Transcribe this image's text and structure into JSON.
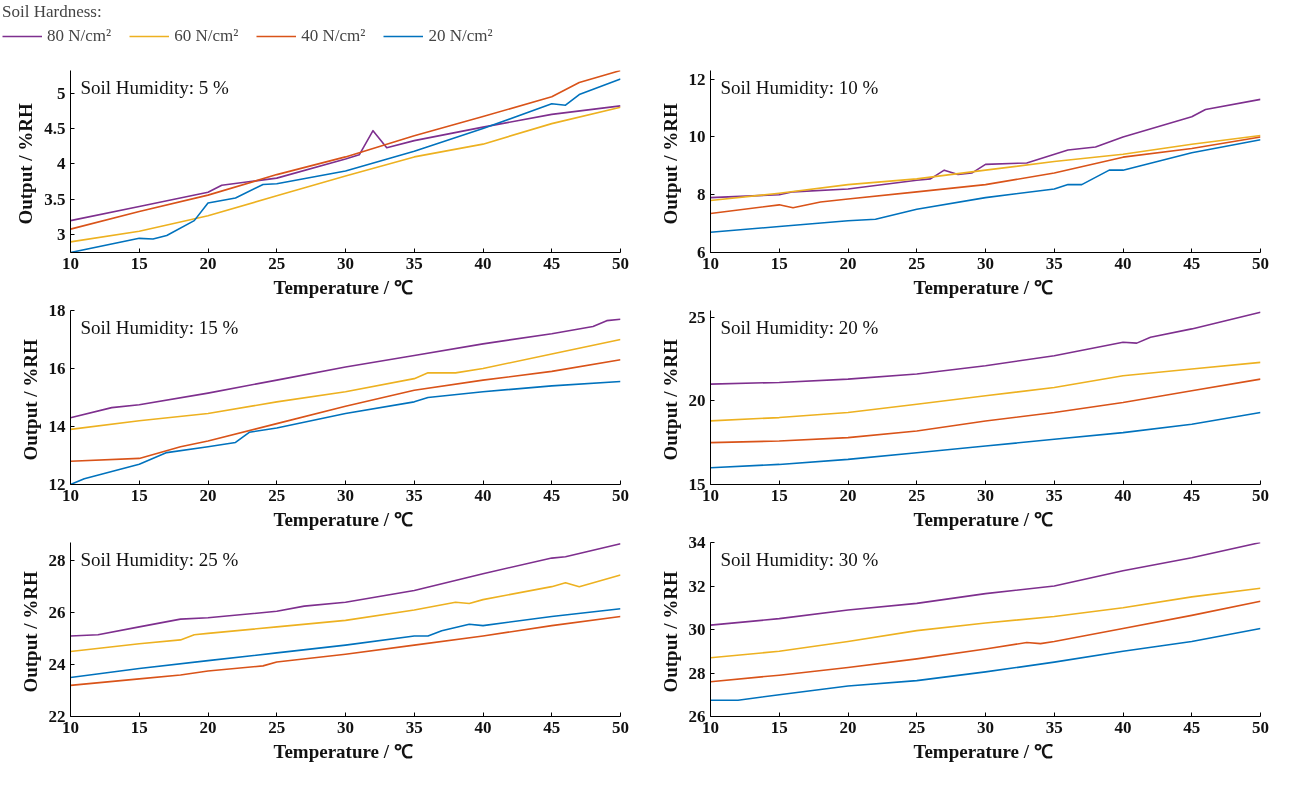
{
  "chart_data": [
    {
      "type": "line",
      "title": "Soil Humidity:  5 %",
      "xlabel": "Temperature  / ℃",
      "ylabel": "Output  / %RH",
      "legend_title": "Soil Hardness:",
      "legend": "top",
      "xlim": [
        10,
        50
      ],
      "xticks": [
        10,
        15,
        20,
        25,
        30,
        35,
        40,
        45,
        50
      ],
      "ylim": [
        2.75,
        5.32
      ],
      "yticks": [
        3,
        3.5,
        4,
        4.5,
        5
      ],
      "grid": false,
      "series": [
        {
          "name": "80 N/cm²",
          "color": "#7e2f8e",
          "x": [
            10,
            15,
            20,
            21,
            25,
            30,
            31,
            32,
            33,
            35,
            40,
            45,
            50
          ],
          "values": [
            3.2,
            3.4,
            3.6,
            3.7,
            3.8,
            4.07,
            4.13,
            4.47,
            4.23,
            4.33,
            4.52,
            4.7,
            4.82
          ]
        },
        {
          "name": "60 N/cm²",
          "color": "#edb120",
          "x": [
            10,
            15,
            20,
            25,
            30,
            35,
            40,
            45,
            50
          ],
          "values": [
            2.9,
            3.05,
            3.27,
            3.55,
            3.83,
            4.1,
            4.28,
            4.57,
            4.8
          ]
        },
        {
          "name": "40 N/cm²",
          "color": "#d95319",
          "x": [
            10,
            15,
            20,
            25,
            30,
            35,
            40,
            45,
            47,
            50
          ],
          "values": [
            3.08,
            3.33,
            3.56,
            3.85,
            4.1,
            4.4,
            4.67,
            4.95,
            5.15,
            5.32
          ]
        },
        {
          "name": "20 N/cm²",
          "color": "#0072bd",
          "x": [
            10,
            15,
            16,
            17,
            19,
            20,
            22,
            24,
            25,
            30,
            35,
            40,
            45,
            46,
            47,
            50
          ],
          "values": [
            2.75,
            2.95,
            2.94,
            2.99,
            3.2,
            3.45,
            3.52,
            3.71,
            3.72,
            3.9,
            4.18,
            4.5,
            4.85,
            4.83,
            4.98,
            5.2
          ]
        }
      ]
    },
    {
      "type": "line",
      "title": "Soil Humidity:  10 %",
      "xlabel": "Temperature  / ℃",
      "ylabel": "Output  / %RH",
      "xlim": [
        10,
        50
      ],
      "xticks": [
        10,
        15,
        20,
        25,
        30,
        35,
        40,
        45,
        50
      ],
      "ylim": [
        6,
        12.3
      ],
      "yticks": [
        6,
        8,
        10,
        12
      ],
      "grid": false,
      "series": [
        {
          "color": "#7e2f8e",
          "x": [
            10,
            15,
            16,
            20,
            25,
            26,
            27,
            28,
            29,
            30,
            33,
            36,
            38,
            40,
            45,
            46,
            50
          ],
          "values": [
            7.9,
            8.0,
            8.1,
            8.2,
            8.5,
            8.55,
            8.85,
            8.7,
            8.75,
            9.05,
            9.1,
            9.55,
            9.65,
            10.0,
            10.7,
            10.95,
            11.3
          ]
        },
        {
          "color": "#edb120",
          "x": [
            10,
            15,
            20,
            25,
            30,
            35,
            40,
            45,
            50
          ],
          "values": [
            7.8,
            8.05,
            8.35,
            8.55,
            8.85,
            9.15,
            9.4,
            9.75,
            10.05
          ]
        },
        {
          "color": "#d95319",
          "x": [
            10,
            15,
            16,
            18,
            20,
            25,
            30,
            35,
            40,
            45,
            50
          ],
          "values": [
            7.35,
            7.65,
            7.55,
            7.75,
            7.85,
            8.1,
            8.35,
            8.75,
            9.3,
            9.6,
            10.0
          ]
        },
        {
          "color": "#0072bd",
          "x": [
            10,
            15,
            20,
            22,
            25,
            30,
            35,
            36,
            37,
            39,
            40,
            45,
            50
          ],
          "values": [
            6.7,
            6.9,
            7.1,
            7.15,
            7.5,
            7.9,
            8.2,
            8.35,
            8.35,
            8.85,
            8.85,
            9.45,
            9.9
          ]
        }
      ]
    },
    {
      "type": "line",
      "title": "Soil Humidity:  15 %",
      "xlabel": "Temperature  / ℃",
      "ylabel": "Output  / %RH",
      "xlim": [
        10,
        50
      ],
      "xticks": [
        10,
        15,
        20,
        25,
        30,
        35,
        40,
        45,
        50
      ],
      "ylim": [
        12,
        18
      ],
      "yticks": [
        12,
        14,
        16,
        18
      ],
      "grid": false,
      "series": [
        {
          "color": "#7e2f8e",
          "x": [
            10,
            13,
            15,
            20,
            25,
            30,
            35,
            40,
            45,
            48,
            49,
            50
          ],
          "values": [
            14.3,
            14.65,
            14.75,
            15.15,
            15.6,
            16.05,
            16.45,
            16.85,
            17.2,
            17.45,
            17.65,
            17.7
          ]
        },
        {
          "color": "#edb120",
          "x": [
            10,
            15,
            20,
            25,
            30,
            35,
            36,
            38,
            40,
            45,
            50
          ],
          "values": [
            13.9,
            14.2,
            14.45,
            14.85,
            15.2,
            15.65,
            15.85,
            15.85,
            16.0,
            16.5,
            17.0
          ]
        },
        {
          "color": "#d95319",
          "x": [
            10,
            15,
            18,
            20,
            25,
            30,
            35,
            40,
            45,
            50
          ],
          "values": [
            12.8,
            12.9,
            13.3,
            13.5,
            14.1,
            14.7,
            15.25,
            15.6,
            15.9,
            16.3
          ]
        },
        {
          "color": "#0072bd",
          "x": [
            10,
            11,
            15,
            17,
            20,
            22,
            23,
            25,
            30,
            35,
            36,
            40,
            45,
            50
          ],
          "values": [
            12.0,
            12.2,
            12.7,
            13.1,
            13.3,
            13.45,
            13.8,
            13.95,
            14.45,
            14.85,
            15.0,
            15.2,
            15.4,
            15.55
          ]
        }
      ]
    },
    {
      "type": "line",
      "title": "Soil Humidity:  20 %",
      "xlabel": "Temperature  / ℃",
      "ylabel": "Output  / %RH",
      "xlim": [
        10,
        50
      ],
      "xticks": [
        10,
        15,
        20,
        25,
        30,
        35,
        40,
        45,
        50
      ],
      "ylim": [
        15,
        25.4
      ],
      "yticks": [
        15,
        20,
        25
      ],
      "grid": false,
      "series": [
        {
          "color": "#7e2f8e",
          "x": [
            10,
            15,
            20,
            25,
            30,
            35,
            40,
            41,
            42,
            45,
            50
          ],
          "values": [
            21.0,
            21.1,
            21.3,
            21.6,
            22.1,
            22.7,
            23.5,
            23.45,
            23.8,
            24.3,
            25.3
          ]
        },
        {
          "color": "#edb120",
          "x": [
            10,
            15,
            20,
            25,
            30,
            35,
            40,
            45,
            50
          ],
          "values": [
            18.8,
            19.0,
            19.3,
            19.8,
            20.3,
            20.8,
            21.5,
            21.9,
            22.3
          ]
        },
        {
          "color": "#d95319",
          "x": [
            10,
            15,
            20,
            25,
            30,
            35,
            40,
            45,
            50
          ],
          "values": [
            17.5,
            17.6,
            17.8,
            18.2,
            18.8,
            19.3,
            19.9,
            20.6,
            21.3
          ]
        },
        {
          "color": "#0072bd",
          "x": [
            10,
            15,
            20,
            25,
            30,
            35,
            40,
            45,
            50
          ],
          "values": [
            16.0,
            16.2,
            16.5,
            16.9,
            17.3,
            17.7,
            18.1,
            18.6,
            19.3
          ]
        }
      ]
    },
    {
      "type": "line",
      "title": "Soil Humidity:  25 %",
      "xlabel": "Temperature  / ℃",
      "ylabel": "Output  / %RH",
      "xlim": [
        10,
        50
      ],
      "xticks": [
        10,
        15,
        20,
        25,
        30,
        35,
        40,
        45,
        50
      ],
      "ylim": [
        22,
        28.7
      ],
      "yticks": [
        22,
        24,
        26,
        28
      ],
      "grid": false,
      "series": [
        {
          "color": "#7e2f8e",
          "x": [
            10,
            12,
            15,
            18,
            20,
            25,
            27,
            30,
            35,
            40,
            45,
            46,
            50
          ],
          "values": [
            25.1,
            25.15,
            25.45,
            25.75,
            25.8,
            26.05,
            26.25,
            26.4,
            26.85,
            27.5,
            28.1,
            28.15,
            28.65
          ]
        },
        {
          "color": "#edb120",
          "x": [
            10,
            15,
            18,
            19,
            20,
            25,
            30,
            35,
            38,
            39,
            40,
            45,
            46,
            47,
            50
          ],
          "values": [
            24.5,
            24.8,
            24.95,
            25.15,
            25.2,
            25.45,
            25.7,
            26.1,
            26.4,
            26.35,
            26.5,
            27.0,
            27.15,
            27.0,
            27.45
          ]
        },
        {
          "color": "#d95319",
          "x": [
            10,
            15,
            18,
            20,
            24,
            25,
            30,
            35,
            40,
            45,
            50
          ],
          "values": [
            23.2,
            23.45,
            23.6,
            23.75,
            23.95,
            24.1,
            24.4,
            24.75,
            25.1,
            25.5,
            25.85
          ]
        },
        {
          "color": "#0072bd",
          "x": [
            10,
            15,
            20,
            25,
            30,
            35,
            36,
            37,
            39,
            40,
            45,
            50
          ],
          "values": [
            23.5,
            23.85,
            24.15,
            24.45,
            24.75,
            25.1,
            25.1,
            25.3,
            25.55,
            25.5,
            25.85,
            26.15
          ]
        }
      ]
    },
    {
      "type": "line",
      "title": "Soil Humidity:  30 %",
      "xlabel": "Temperature  / ℃",
      "ylabel": "Output  / %RH",
      "xlim": [
        10,
        50
      ],
      "xticks": [
        10,
        15,
        20,
        25,
        30,
        35,
        40,
        45,
        50
      ],
      "ylim": [
        26,
        34
      ],
      "yticks": [
        26,
        28,
        30,
        32,
        34
      ],
      "grid": false,
      "series": [
        {
          "color": "#7e2f8e",
          "x": [
            10,
            15,
            20,
            25,
            30,
            35,
            40,
            45,
            50
          ],
          "values": [
            30.2,
            30.5,
            30.9,
            31.2,
            31.65,
            32.0,
            32.7,
            33.3,
            34.0
          ]
        },
        {
          "color": "#edb120",
          "x": [
            10,
            15,
            20,
            25,
            30,
            35,
            40,
            45,
            50
          ],
          "values": [
            28.7,
            29.0,
            29.45,
            29.95,
            30.3,
            30.6,
            31.0,
            31.5,
            31.9
          ]
        },
        {
          "color": "#d95319",
          "x": [
            10,
            15,
            20,
            25,
            30,
            33,
            34,
            35,
            40,
            45,
            50
          ],
          "values": [
            27.6,
            27.9,
            28.25,
            28.65,
            29.1,
            29.4,
            29.35,
            29.45,
            30.05,
            30.65,
            31.3
          ]
        },
        {
          "color": "#0072bd",
          "x": [
            10,
            12,
            15,
            20,
            25,
            30,
            35,
            40,
            45,
            50
          ],
          "values": [
            26.75,
            26.75,
            27.0,
            27.4,
            27.65,
            28.05,
            28.5,
            29.0,
            29.45,
            30.05
          ]
        }
      ]
    }
  ]
}
